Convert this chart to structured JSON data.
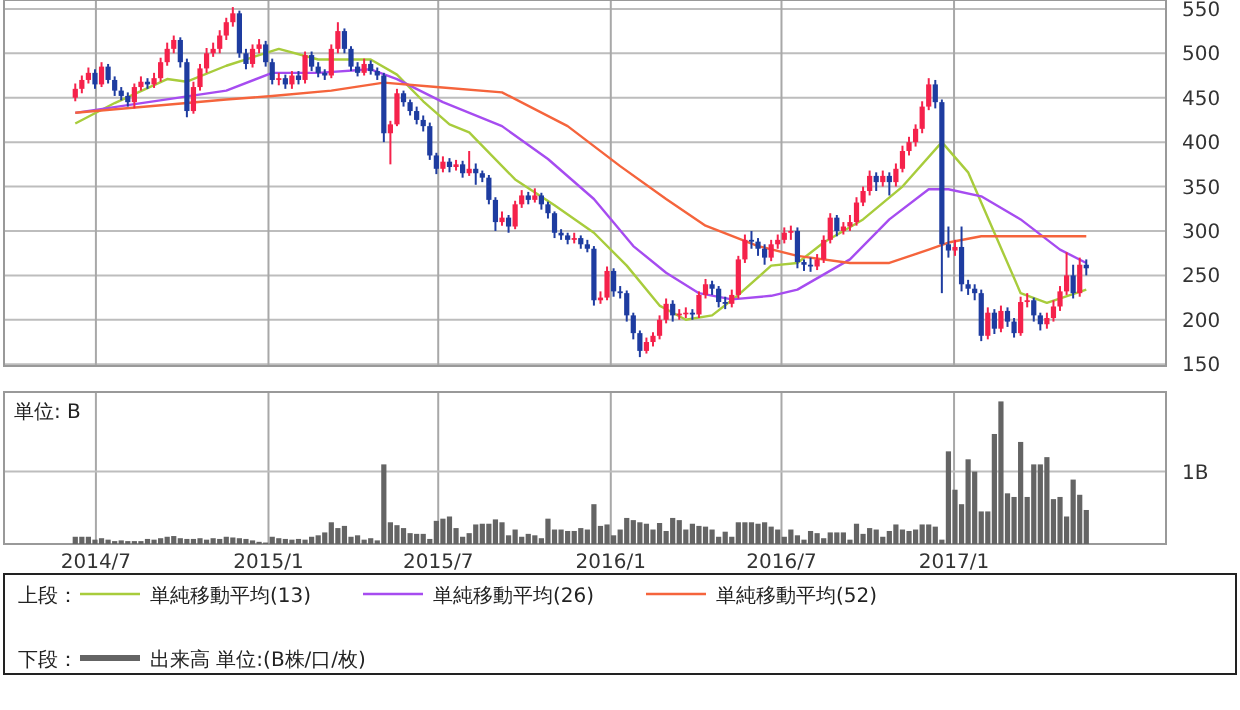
{
  "chart_data": [
    {
      "type": "candlestick",
      "legend_title": "上段：",
      "legend": "bottom",
      "grid": true,
      "tick_labels": "y",
      "xlim": [
        "2014-03-25",
        "2017-08-15"
      ],
      "xticks": [
        {
          "value": "2014-07-01",
          "label": null
        },
        {
          "value": "2015-01-01",
          "label": null
        },
        {
          "value": "2015-07-01",
          "label": null
        },
        {
          "value": "2016-01-01",
          "label": null
        },
        {
          "value": "2016-07-01",
          "label": null
        },
        {
          "value": "2017-01-01",
          "label": null
        }
      ],
      "ylim": [
        148,
        560
      ],
      "yticks": [
        150,
        200,
        250,
        300,
        350,
        400,
        450,
        500,
        550
      ],
      "x": [
        "2014-06-09",
        "2014-06-16",
        "2014-06-23",
        "2014-06-30",
        "2014-07-07",
        "2014-07-14",
        "2014-07-21",
        "2014-07-28",
        "2014-08-04",
        "2014-08-11",
        "2014-08-18",
        "2014-08-25",
        "2014-09-01",
        "2014-09-08",
        "2014-09-15",
        "2014-09-22",
        "2014-09-29",
        "2014-10-06",
        "2014-10-13",
        "2014-10-20",
        "2014-10-27",
        "2014-11-03",
        "2014-11-10",
        "2014-11-17",
        "2014-11-24",
        "2014-12-01",
        "2014-12-08",
        "2014-12-15",
        "2014-12-22",
        "2014-12-29",
        "2015-01-05",
        "2015-01-12",
        "2015-01-19",
        "2015-01-26",
        "2015-02-02",
        "2015-02-09",
        "2015-02-16",
        "2015-02-23",
        "2015-03-02",
        "2015-03-09",
        "2015-03-16",
        "2015-03-23",
        "2015-03-30",
        "2015-04-06",
        "2015-04-13",
        "2015-04-20",
        "2015-04-27",
        "2015-05-04",
        "2015-05-11",
        "2015-05-18",
        "2015-05-25",
        "2015-06-01",
        "2015-06-08",
        "2015-06-15",
        "2015-06-22",
        "2015-06-29",
        "2015-07-06",
        "2015-07-13",
        "2015-07-20",
        "2015-07-27",
        "2015-08-03",
        "2015-08-10",
        "2015-08-17",
        "2015-08-24",
        "2015-08-31",
        "2015-09-07",
        "2015-09-14",
        "2015-09-21",
        "2015-09-28",
        "2015-10-05",
        "2015-10-12",
        "2015-10-19",
        "2015-10-26",
        "2015-11-02",
        "2015-11-09",
        "2015-11-16",
        "2015-11-23",
        "2015-11-30",
        "2015-12-07",
        "2015-12-14",
        "2015-12-21",
        "2015-12-28",
        "2016-01-04",
        "2016-01-11",
        "2016-01-18",
        "2016-01-25",
        "2016-02-01",
        "2016-02-08",
        "2016-02-15",
        "2016-02-22",
        "2016-02-29",
        "2016-03-07",
        "2016-03-14",
        "2016-03-21",
        "2016-03-28",
        "2016-04-04",
        "2016-04-11",
        "2016-04-18",
        "2016-04-25",
        "2016-05-02",
        "2016-05-09",
        "2016-05-16",
        "2016-05-23",
        "2016-05-30",
        "2016-06-06",
        "2016-06-13",
        "2016-06-20",
        "2016-06-27",
        "2016-07-04",
        "2016-07-11",
        "2016-07-18",
        "2016-07-25",
        "2016-08-01",
        "2016-08-08",
        "2016-08-15",
        "2016-08-22",
        "2016-08-29",
        "2016-09-05",
        "2016-09-12",
        "2016-09-19",
        "2016-09-26",
        "2016-10-03",
        "2016-10-10",
        "2016-10-17",
        "2016-10-24",
        "2016-10-31",
        "2016-11-07",
        "2016-11-14",
        "2016-11-21",
        "2016-11-28",
        "2016-12-05",
        "2016-12-12",
        "2016-12-19",
        "2016-12-26",
        "2017-01-02",
        "2017-01-09",
        "2017-01-16",
        "2017-01-23",
        "2017-01-30",
        "2017-02-06",
        "2017-02-13",
        "2017-02-20",
        "2017-02-27",
        "2017-03-06",
        "2017-03-13",
        "2017-03-20",
        "2017-03-27",
        "2017-04-03",
        "2017-04-10",
        "2017-04-17",
        "2017-04-24",
        "2017-05-01",
        "2017-05-08",
        "2017-05-15",
        "2017-05-22"
      ],
      "ohlc": [
        [
          450,
          466,
          446,
          460
        ],
        [
          460,
          475,
          455,
          470
        ],
        [
          470,
          484,
          466,
          478
        ],
        [
          478,
          482,
          460,
          465
        ],
        [
          465,
          490,
          462,
          485
        ],
        [
          485,
          488,
          466,
          470
        ],
        [
          470,
          474,
          452,
          458
        ],
        [
          458,
          462,
          447,
          452
        ],
        [
          452,
          456,
          440,
          445
        ],
        [
          445,
          466,
          438,
          462
        ],
        [
          462,
          474,
          458,
          468
        ],
        [
          468,
          472,
          460,
          465
        ],
        [
          465,
          478,
          461,
          472
        ],
        [
          472,
          495,
          468,
          490
        ],
        [
          490,
          512,
          486,
          505
        ],
        [
          505,
          520,
          500,
          515
        ],
        [
          515,
          518,
          484,
          490
        ],
        [
          490,
          494,
          428,
          435
        ],
        [
          435,
          468,
          432,
          462
        ],
        [
          462,
          488,
          458,
          483
        ],
        [
          483,
          506,
          478,
          500
        ],
        [
          500,
          512,
          496,
          505
        ],
        [
          505,
          526,
          500,
          520
        ],
        [
          520,
          540,
          515,
          535
        ],
        [
          535,
          552,
          530,
          545
        ],
        [
          545,
          548,
          495,
          500
        ],
        [
          500,
          505,
          482,
          488
        ],
        [
          488,
          510,
          484,
          505
        ],
        [
          505,
          516,
          500,
          510
        ],
        [
          510,
          514,
          485,
          490
        ],
        [
          490,
          494,
          465,
          470
        ],
        [
          470,
          478,
          464,
          472
        ],
        [
          472,
          476,
          460,
          465
        ],
        [
          465,
          480,
          460,
          475
        ],
        [
          475,
          480,
          465,
          470
        ],
        [
          470,
          502,
          466,
          498
        ],
        [
          498,
          502,
          480,
          485
        ],
        [
          485,
          490,
          473,
          478
        ],
        [
          478,
          482,
          470,
          475
        ],
        [
          475,
          510,
          472,
          505
        ],
        [
          505,
          535,
          500,
          525
        ],
        [
          525,
          528,
          500,
          505
        ],
        [
          505,
          508,
          480,
          485
        ],
        [
          485,
          490,
          474,
          478
        ],
        [
          478,
          494,
          475,
          488
        ],
        [
          488,
          492,
          476,
          480
        ],
        [
          480,
          484,
          470,
          475
        ],
        [
          475,
          478,
          400,
          410
        ],
        [
          410,
          424,
          375,
          420
        ],
        [
          420,
          460,
          418,
          455
        ],
        [
          455,
          458,
          440,
          445
        ],
        [
          445,
          448,
          430,
          435
        ],
        [
          435,
          440,
          420,
          425
        ],
        [
          425,
          430,
          412,
          418
        ],
        [
          418,
          422,
          380,
          385
        ],
        [
          385,
          388,
          364,
          370
        ],
        [
          370,
          384,
          366,
          378
        ],
        [
          378,
          382,
          366,
          372
        ],
        [
          372,
          380,
          368,
          375
        ],
        [
          375,
          379,
          360,
          365
        ],
        [
          365,
          390,
          362,
          370
        ],
        [
          370,
          376,
          352,
          365
        ],
        [
          365,
          368,
          355,
          360
        ],
        [
          360,
          363,
          330,
          335
        ],
        [
          335,
          338,
          300,
          310
        ],
        [
          310,
          322,
          306,
          315
        ],
        [
          315,
          318,
          298,
          305
        ],
        [
          305,
          334,
          302,
          330
        ],
        [
          330,
          346,
          326,
          340
        ],
        [
          340,
          344,
          330,
          335
        ],
        [
          335,
          348,
          332,
          340
        ],
        [
          340,
          343,
          324,
          330
        ],
        [
          330,
          333,
          314,
          320
        ],
        [
          320,
          322,
          292,
          298
        ],
        [
          298,
          302,
          290,
          295
        ],
        [
          295,
          298,
          285,
          290
        ],
        [
          290,
          298,
          286,
          292
        ],
        [
          292,
          295,
          280,
          285
        ],
        [
          285,
          290,
          276,
          280
        ],
        [
          280,
          283,
          216,
          222
        ],
        [
          222,
          232,
          218,
          225
        ],
        [
          225,
          260,
          222,
          255
        ],
        [
          255,
          258,
          226,
          232
        ],
        [
          232,
          238,
          224,
          230
        ],
        [
          230,
          233,
          198,
          205
        ],
        [
          205,
          208,
          178,
          185
        ],
        [
          185,
          188,
          158,
          165
        ],
        [
          165,
          180,
          162,
          175
        ],
        [
          175,
          186,
          170,
          182
        ],
        [
          182,
          205,
          178,
          200
        ],
        [
          200,
          224,
          196,
          218
        ],
        [
          218,
          222,
          198,
          205
        ],
        [
          205,
          212,
          200,
          207
        ],
        [
          207,
          214,
          202,
          208
        ],
        [
          208,
          212,
          200,
          206
        ],
        [
          206,
          232,
          202,
          228
        ],
        [
          228,
          246,
          224,
          240
        ],
        [
          240,
          244,
          228,
          235
        ],
        [
          235,
          238,
          214,
          220
        ],
        [
          220,
          226,
          212,
          218
        ],
        [
          218,
          234,
          214,
          228
        ],
        [
          228,
          272,
          224,
          268
        ],
        [
          268,
          296,
          264,
          290
        ],
        [
          290,
          300,
          280,
          288
        ],
        [
          288,
          292,
          272,
          280
        ],
        [
          280,
          285,
          262,
          270
        ],
        [
          270,
          290,
          266,
          285
        ],
        [
          285,
          296,
          280,
          290
        ],
        [
          290,
          304,
          286,
          298
        ],
        [
          298,
          306,
          290,
          300
        ],
        [
          300,
          304,
          258,
          265
        ],
        [
          265,
          268,
          255,
          262
        ],
        [
          262,
          270,
          254,
          260
        ],
        [
          260,
          274,
          256,
          268
        ],
        [
          268,
          295,
          264,
          290
        ],
        [
          290,
          320,
          286,
          315
        ],
        [
          315,
          318,
          294,
          300
        ],
        [
          300,
          310,
          296,
          305
        ],
        [
          305,
          318,
          300,
          310
        ],
        [
          310,
          338,
          306,
          332
        ],
        [
          332,
          350,
          328,
          345
        ],
        [
          345,
          368,
          340,
          362
        ],
        [
          362,
          366,
          345,
          355
        ],
        [
          355,
          368,
          350,
          362
        ],
        [
          362,
          366,
          340,
          355
        ],
        [
          355,
          376,
          350,
          370
        ],
        [
          370,
          396,
          366,
          390
        ],
        [
          390,
          406,
          385,
          400
        ],
        [
          400,
          420,
          395,
          415
        ],
        [
          415,
          446,
          410,
          440
        ],
        [
          440,
          472,
          436,
          465
        ],
        [
          465,
          470,
          438,
          445
        ],
        [
          445,
          448,
          230,
          285
        ],
        [
          285,
          305,
          270,
          278
        ],
        [
          278,
          290,
          272,
          282
        ],
        [
          282,
          305,
          232,
          240
        ],
        [
          240,
          245,
          228,
          235
        ],
        [
          235,
          240,
          222,
          230
        ],
        [
          230,
          234,
          176,
          182
        ],
        [
          182,
          214,
          178,
          208
        ],
        [
          208,
          212,
          184,
          190
        ],
        [
          190,
          216,
          186,
          210
        ],
        [
          210,
          214,
          192,
          198
        ],
        [
          198,
          202,
          180,
          185
        ],
        [
          185,
          226,
          182,
          220
        ],
        [
          220,
          230,
          214,
          222
        ],
        [
          222,
          225,
          198,
          205
        ],
        [
          205,
          208,
          188,
          195
        ],
        [
          195,
          208,
          190,
          202
        ],
        [
          202,
          222,
          198,
          215
        ],
        [
          215,
          238,
          210,
          232
        ],
        [
          232,
          276,
          228,
          250
        ],
        [
          250,
          262,
          224,
          230
        ],
        [
          230,
          270,
          226,
          262
        ],
        [
          262,
          268,
          250,
          258
        ]
      ],
      "colors": [
        "#f5224b",
        "#f5224b",
        "#f5224b",
        "#1e3ca0",
        "#f5224b",
        "#1e3ca0",
        "#1e3ca0",
        "#1e3ca0",
        "#1e3ca0",
        "#f5224b",
        "#f5224b",
        "#1e3ca0",
        "#f5224b",
        "#f5224b",
        "#f5224b",
        "#f5224b",
        "#1e3ca0",
        "#1e3ca0",
        "#f5224b",
        "#f5224b",
        "#f5224b",
        "#f5224b",
        "#f5224b",
        "#f5224b",
        "#f5224b",
        "#1e3ca0",
        "#1e3ca0",
        "#f5224b",
        "#f5224b",
        "#1e3ca0",
        "#1e3ca0",
        "#f5224b",
        "#1e3ca0",
        "#f5224b",
        "#1e3ca0",
        "#f5224b",
        "#1e3ca0",
        "#1e3ca0",
        "#1e3ca0",
        "#f5224b",
        "#f5224b",
        "#1e3ca0",
        "#1e3ca0",
        "#1e3ca0",
        "#f5224b",
        "#1e3ca0",
        "#1e3ca0",
        "#1e3ca0",
        "#f5224b",
        "#f5224b",
        "#1e3ca0",
        "#1e3ca0",
        "#1e3ca0",
        "#1e3ca0",
        "#1e3ca0",
        "#1e3ca0",
        "#f5224b",
        "#1e3ca0",
        "#f5224b",
        "#1e3ca0",
        "#f5224b",
        "#1e3ca0",
        "#1e3ca0",
        "#1e3ca0",
        "#1e3ca0",
        "#f5224b",
        "#1e3ca0",
        "#f5224b",
        "#f5224b",
        "#1e3ca0",
        "#f5224b",
        "#1e3ca0",
        "#1e3ca0",
        "#1e3ca0",
        "#1e3ca0",
        "#1e3ca0",
        "#f5224b",
        "#1e3ca0",
        "#1e3ca0",
        "#1e3ca0",
        "#f5224b",
        "#f5224b",
        "#1e3ca0",
        "#1e3ca0",
        "#1e3ca0",
        "#1e3ca0",
        "#1e3ca0",
        "#f5224b",
        "#f5224b",
        "#f5224b",
        "#f5224b",
        "#1e3ca0",
        "#f5224b",
        "#f5224b",
        "#1e3ca0",
        "#f5224b",
        "#f5224b",
        "#1e3ca0",
        "#1e3ca0",
        "#1e3ca0",
        "#f5224b",
        "#f5224b",
        "#f5224b",
        "#1e3ca0",
        "#1e3ca0",
        "#1e3ca0",
        "#f5224b",
        "#f5224b",
        "#f5224b",
        "#f5224b",
        "#1e3ca0",
        "#1e3ca0",
        "#1e3ca0",
        "#f5224b",
        "#f5224b",
        "#f5224b",
        "#1e3ca0",
        "#f5224b",
        "#f5224b",
        "#f5224b",
        "#f5224b",
        "#f5224b",
        "#1e3ca0",
        "#f5224b",
        "#1e3ca0",
        "#f5224b",
        "#f5224b",
        "#f5224b",
        "#f5224b",
        "#f5224b",
        "#f5224b",
        "#1e3ca0",
        "#1e3ca0",
        "#1e3ca0",
        "#f5224b",
        "#1e3ca0",
        "#1e3ca0",
        "#1e3ca0",
        "#1e3ca0",
        "#f5224b",
        "#1e3ca0",
        "#f5224b",
        "#1e3ca0",
        "#1e3ca0",
        "#f5224b",
        "#f5224b",
        "#1e3ca0",
        "#1e3ca0",
        "#f5224b",
        "#f5224b",
        "#f5224b",
        "#f5224b",
        "#1e3ca0",
        "#f5224b",
        "#1e3ca0"
      ],
      "series": [
        {
          "name": "単純移動平均(13)",
          "type": "line",
          "color": "#a8cc3c",
          "x": [
            "2014-06-09",
            "2014-07-21",
            "2014-09-15",
            "2014-10-06",
            "2014-11-17",
            "2015-01-12",
            "2015-02-23",
            "2015-04-20",
            "2015-05-18",
            "2015-06-15",
            "2015-07-13",
            "2015-08-03",
            "2015-09-21",
            "2015-11-02",
            "2015-12-14",
            "2016-01-18",
            "2016-02-22",
            "2016-03-21",
            "2016-04-18",
            "2016-05-16",
            "2016-06-20",
            "2016-07-18",
            "2016-08-15",
            "2016-09-26",
            "2016-11-07",
            "2016-12-19",
            "2017-01-16",
            "2017-02-13",
            "2017-03-13",
            "2017-04-10",
            "2017-05-22"
          ],
          "values": [
            421,
            444,
            471,
            468,
            486,
            505,
            493,
            493,
            476,
            446,
            420,
            411,
            358,
            329,
            298,
            261,
            216,
            200,
            205,
            228,
            261,
            264,
            287,
            313,
            350,
            400,
            366,
            298,
            230,
            219,
            234
          ]
        },
        {
          "name": "単純移動平均(26)",
          "type": "line",
          "color": "#a64cf0",
          "x": [
            "2014-06-09",
            "2014-11-17",
            "2015-01-05",
            "2015-02-23",
            "2015-04-20",
            "2015-05-18",
            "2015-07-06",
            "2015-09-07",
            "2015-10-26",
            "2015-12-14",
            "2016-01-25",
            "2016-02-29",
            "2016-04-04",
            "2016-05-09",
            "2016-06-20",
            "2016-07-18",
            "2016-09-12",
            "2016-10-24",
            "2016-12-05",
            "2016-12-26",
            "2017-01-30",
            "2017-03-13",
            "2017-04-24",
            "2017-05-22"
          ],
          "values": [
            433,
            458,
            478,
            478,
            482,
            471,
            445,
            418,
            381,
            336,
            283,
            253,
            230,
            223,
            227,
            234,
            268,
            313,
            347,
            347,
            339,
            313,
            279,
            264
          ]
        },
        {
          "name": "単純移動平均(52)",
          "type": "line",
          "color": "#f5643c",
          "x": [
            "2014-06-09",
            "2014-10-06",
            "2014-11-17",
            "2015-01-05",
            "2015-03-09",
            "2015-05-04",
            "2015-06-29",
            "2015-09-07",
            "2015-11-16",
            "2016-01-11",
            "2016-02-29",
            "2016-04-11",
            "2016-06-06",
            "2016-07-18",
            "2016-09-12",
            "2016-10-24",
            "2016-12-05",
            "2016-12-26",
            "2017-01-30",
            "2017-03-27",
            "2017-05-22"
          ],
          "values": [
            433,
            444,
            448,
            452,
            458,
            467,
            462,
            456,
            418,
            373,
            336,
            306,
            283,
            272,
            264,
            264,
            279,
            287,
            294,
            294,
            294
          ]
        }
      ]
    },
    {
      "type": "bar",
      "ylabel": "単位: B",
      "legend_title": "下段：",
      "legend": "bottom",
      "grid": "x",
      "ref_lines": [
        {
          "axis": "y",
          "value": 1,
          "color": "#bdbdbd"
        }
      ],
      "xlim": [
        "2014-03-25",
        "2017-08-15"
      ],
      "xticks": [
        {
          "value": "2014-07-01",
          "label": "2014/7"
        },
        {
          "value": "2015-01-01",
          "label": "2015/1"
        },
        {
          "value": "2015-07-01",
          "label": "2015/7"
        },
        {
          "value": "2016-01-01",
          "label": "2016/1"
        },
        {
          "value": "2016-07-01",
          "label": "2016/7"
        },
        {
          "value": "2017-01-01",
          "label": "2017/1"
        }
      ],
      "ylim": [
        0,
        2.1
      ],
      "yticks": [
        {
          "value": 1,
          "label": "1B"
        }
      ],
      "x": [
        "2014-06-09",
        "2014-06-16",
        "2014-06-23",
        "2014-06-30",
        "2014-07-07",
        "2014-07-14",
        "2014-07-21",
        "2014-07-28",
        "2014-08-04",
        "2014-08-11",
        "2014-08-18",
        "2014-08-25",
        "2014-09-01",
        "2014-09-08",
        "2014-09-15",
        "2014-09-22",
        "2014-09-29",
        "2014-10-06",
        "2014-10-13",
        "2014-10-20",
        "2014-10-27",
        "2014-11-03",
        "2014-11-10",
        "2014-11-17",
        "2014-11-24",
        "2014-12-01",
        "2014-12-08",
        "2014-12-15",
        "2014-12-22",
        "2014-12-29",
        "2015-01-05",
        "2015-01-12",
        "2015-01-19",
        "2015-01-26",
        "2015-02-02",
        "2015-02-09",
        "2015-02-16",
        "2015-02-23",
        "2015-03-02",
        "2015-03-09",
        "2015-03-16",
        "2015-03-23",
        "2015-03-30",
        "2015-04-06",
        "2015-04-13",
        "2015-04-20",
        "2015-04-27",
        "2015-05-04",
        "2015-05-11",
        "2015-05-18",
        "2015-05-25",
        "2015-06-01",
        "2015-06-08",
        "2015-06-15",
        "2015-06-22",
        "2015-06-29",
        "2015-07-06",
        "2015-07-13",
        "2015-07-20",
        "2015-07-27",
        "2015-08-03",
        "2015-08-10",
        "2015-08-17",
        "2015-08-24",
        "2015-08-31",
        "2015-09-07",
        "2015-09-14",
        "2015-09-21",
        "2015-09-28",
        "2015-10-05",
        "2015-10-12",
        "2015-10-19",
        "2015-10-26",
        "2015-11-02",
        "2015-11-09",
        "2015-11-16",
        "2015-11-23",
        "2015-11-30",
        "2015-12-07",
        "2015-12-14",
        "2015-12-21",
        "2015-12-28",
        "2016-01-04",
        "2016-01-11",
        "2016-01-18",
        "2016-01-25",
        "2016-02-01",
        "2016-02-08",
        "2016-02-15",
        "2016-02-22",
        "2016-02-29",
        "2016-03-07",
        "2016-03-14",
        "2016-03-21",
        "2016-03-28",
        "2016-04-04",
        "2016-04-11",
        "2016-04-18",
        "2016-04-25",
        "2016-05-02",
        "2016-05-09",
        "2016-05-16",
        "2016-05-23",
        "2016-05-30",
        "2016-06-06",
        "2016-06-13",
        "2016-06-20",
        "2016-06-27",
        "2016-07-04",
        "2016-07-11",
        "2016-07-18",
        "2016-07-25",
        "2016-08-01",
        "2016-08-08",
        "2016-08-15",
        "2016-08-22",
        "2016-08-29",
        "2016-09-05",
        "2016-09-12",
        "2016-09-19",
        "2016-09-26",
        "2016-10-03",
        "2016-10-10",
        "2016-10-17",
        "2016-10-24",
        "2016-10-31",
        "2016-11-07",
        "2016-11-14",
        "2016-11-21",
        "2016-11-28",
        "2016-12-05",
        "2016-12-12",
        "2016-12-19",
        "2016-12-26",
        "2017-01-02",
        "2017-01-09",
        "2017-01-16",
        "2017-01-23",
        "2017-01-30",
        "2017-02-06",
        "2017-02-13",
        "2017-02-20",
        "2017-02-27",
        "2017-03-06",
        "2017-03-13",
        "2017-03-20",
        "2017-03-27",
        "2017-04-03",
        "2017-04-10",
        "2017-04-17",
        "2017-04-24",
        "2017-05-01",
        "2017-05-08",
        "2017-05-15",
        "2017-05-22"
      ],
      "series": [
        {
          "name": "出来高 単位:(B株/口/枚)",
          "color": "#646464",
          "values": [
            0.1,
            0.1,
            0.1,
            0.06,
            0.08,
            0.06,
            0.04,
            0.05,
            0.04,
            0.04,
            0.04,
            0.07,
            0.06,
            0.08,
            0.1,
            0.11,
            0.08,
            0.07,
            0.07,
            0.08,
            0.06,
            0.08,
            0.07,
            0.1,
            0.09,
            0.08,
            0.07,
            0.05,
            0.03,
            0.02,
            0.1,
            0.08,
            0.07,
            0.06,
            0.07,
            0.06,
            0.1,
            0.12,
            0.16,
            0.3,
            0.22,
            0.25,
            0.1,
            0.12,
            0.06,
            0.08,
            0.05,
            1.1,
            0.3,
            0.26,
            0.22,
            0.15,
            0.14,
            0.14,
            0.07,
            0.32,
            0.35,
            0.38,
            0.22,
            0.1,
            0.15,
            0.27,
            0.28,
            0.28,
            0.34,
            0.3,
            0.12,
            0.2,
            0.1,
            0.14,
            0.12,
            0.08,
            0.35,
            0.2,
            0.2,
            0.18,
            0.18,
            0.22,
            0.2,
            0.55,
            0.25,
            0.27,
            0.12,
            0.2,
            0.36,
            0.33,
            0.3,
            0.28,
            0.2,
            0.29,
            0.18,
            0.36,
            0.33,
            0.2,
            0.28,
            0.25,
            0.24,
            0.2,
            0.1,
            0.17,
            0.1,
            0.3,
            0.3,
            0.3,
            0.28,
            0.3,
            0.24,
            0.2,
            0.1,
            0.2,
            0.12,
            0.06,
            0.18,
            0.15,
            0.08,
            0.16,
            0.16,
            0.16,
            0.06,
            0.28,
            0.14,
            0.22,
            0.2,
            0.1,
            0.18,
            0.27,
            0.2,
            0.18,
            0.2,
            0.27,
            0.27,
            0.24,
            0.06,
            1.28,
            0.75,
            0.55,
            1.17,
            1.0,
            0.45,
            0.45,
            1.52,
            1.97,
            0.7,
            0.65,
            1.41,
            0.65,
            1.1,
            1.1,
            1.2,
            0.62,
            0.65,
            0.38,
            0.89,
            0.68,
            0.47
          ]
        }
      ]
    }
  ]
}
